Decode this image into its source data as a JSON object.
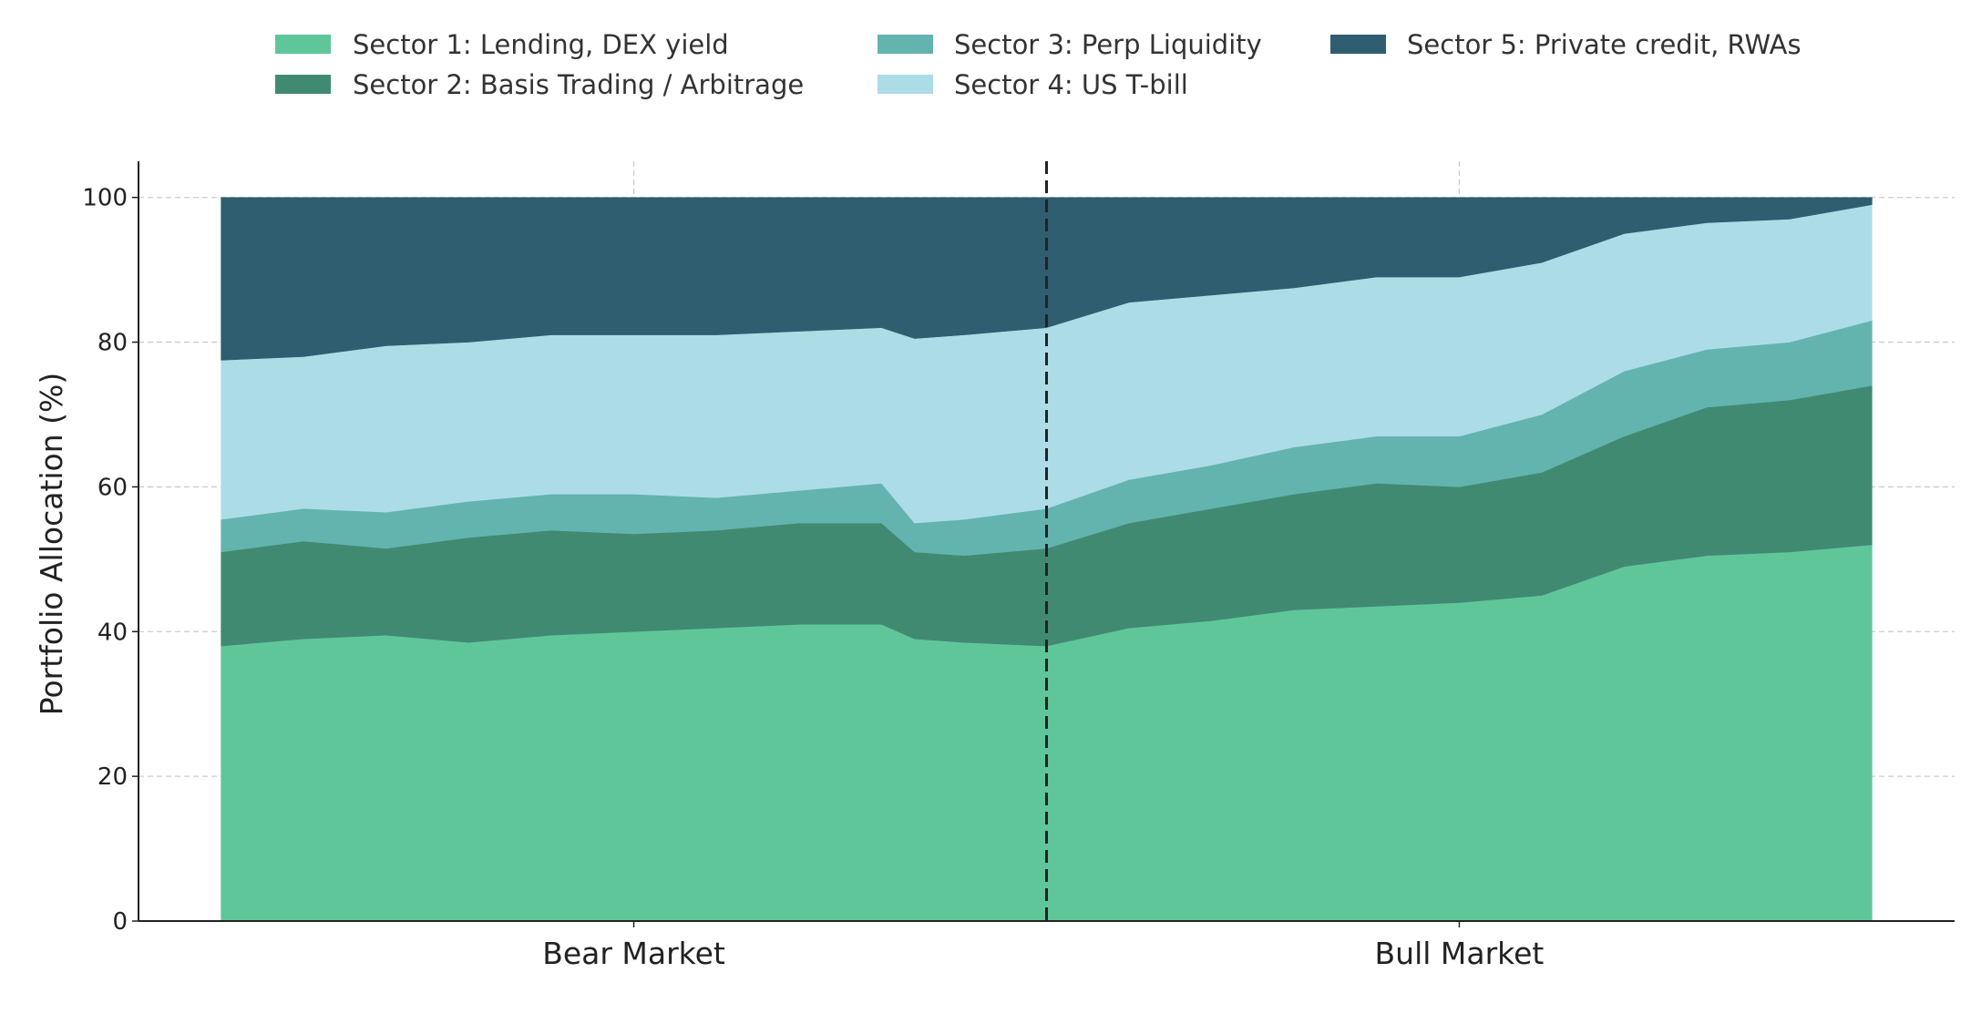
{
  "chart_data": {
    "type": "area",
    "stacked": true,
    "title": "",
    "xlabel": "",
    "ylabel": "Portfolio Allocation (%)",
    "xlim": [
      -5,
      105
    ],
    "ylim": [
      0,
      105
    ],
    "yticks": [
      0,
      20,
      40,
      60,
      80,
      100
    ],
    "xticks": [
      {
        "value": 25,
        "label": "Bear Market"
      },
      {
        "value": 75,
        "label": "Bull Market"
      }
    ],
    "divider": {
      "x": 50,
      "style": "dashed"
    },
    "grid": true,
    "legend_placement": "top-center",
    "x": [
      0,
      5,
      10,
      15,
      20,
      25,
      30,
      35,
      40,
      42,
      45,
      50,
      55,
      60,
      65,
      70,
      75,
      80,
      85,
      90,
      95,
      100
    ],
    "series": [
      {
        "name": "Sector 1: Lending, DEX yield",
        "color": "#5fc69a",
        "values": [
          38,
          39,
          39.5,
          38.5,
          39.5,
          40,
          40.5,
          41,
          41,
          39,
          38.5,
          38,
          40.5,
          41.5,
          43,
          43.5,
          44,
          45,
          49,
          50.5,
          51,
          52
        ]
      },
      {
        "name": "Sector 2: Basis Trading / Arbitrage",
        "color": "#418a72",
        "values": [
          13,
          13.5,
          12,
          14.5,
          14.5,
          13.5,
          13.5,
          14,
          14,
          12,
          12,
          13.5,
          14.5,
          15.5,
          16,
          17,
          16,
          17,
          18,
          20.5,
          21,
          22
        ]
      },
      {
        "name": "Sector 3: Perp Liquidity",
        "color": "#63b4ae",
        "values": [
          4.5,
          4.5,
          5,
          5,
          5,
          5.5,
          4.5,
          4.5,
          5.5,
          4,
          5,
          5.5,
          6,
          6,
          6.5,
          6.5,
          7,
          8,
          9,
          8,
          8,
          9
        ]
      },
      {
        "name": "Sector 4: US T-bill",
        "color": "#acdde6",
        "values": [
          22,
          21,
          23,
          22,
          22,
          22,
          22.5,
          22,
          21.5,
          25.5,
          25.5,
          25,
          24.5,
          23.5,
          22,
          22,
          22,
          21,
          19,
          17.5,
          17,
          16
        ]
      },
      {
        "name": "Sector 5: Private credit, RWAs",
        "color": "#2e5e6f",
        "values": [
          22.5,
          22,
          20.5,
          20,
          19,
          19,
          19,
          18.5,
          18,
          19.5,
          19,
          18,
          14.5,
          13.5,
          12.5,
          11,
          11,
          9,
          5,
          3.5,
          3,
          1
        ]
      }
    ]
  }
}
